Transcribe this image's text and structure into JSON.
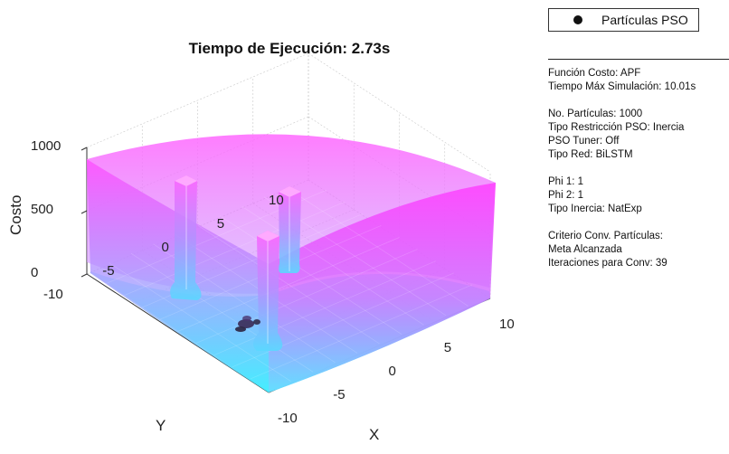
{
  "title": "Tiempo de Ejecución: 2.73s",
  "legend": {
    "label": "Partículas PSO",
    "marker_color": "#111111"
  },
  "info_lines": [
    "Función Costo: APF",
    "Tiempo Máx Simulación: 10.01s",
    "",
    "No. Partículas: 1000",
    "Tipo Restricción PSO: Inercia",
    "PSO Tuner: Off",
    "Tipo Red: BiLSTM",
    "",
    "Phi 1: 1",
    "Phi 2: 1",
    "Tipo Inercia: NatExp",
    "",
    "Criterio Conv. Partículas:",
    "Meta Alcanzada",
    "Iteraciones para Conv: 39"
  ],
  "chart_data": {
    "type": "surface3d",
    "title": "Tiempo de Ejecución: 2.73s",
    "xlabel": "X",
    "ylabel": "Y",
    "zlabel": "Costo",
    "xlim": [
      -10,
      10
    ],
    "ylim": [
      -10,
      10
    ],
    "zlim": [
      0,
      1000
    ],
    "x_ticks": [
      "-10",
      "-5",
      "0",
      "5",
      "10"
    ],
    "y_ticks": [
      "-10",
      "-5",
      "0",
      "5",
      "10"
    ],
    "z_ticks": [
      "0",
      "500",
      "1000"
    ],
    "grid": true,
    "colormap": [
      "#44eeff",
      "#ff44ff"
    ],
    "obstacles": [
      {
        "x": 3,
        "y": 6,
        "height": 920
      },
      {
        "x": 6,
        "y": 0,
        "height": 830
      },
      {
        "x": 8,
        "y": -2,
        "height": 920
      }
    ],
    "particles_cluster": {
      "x": 6,
      "y": -6,
      "z": 0
    }
  }
}
